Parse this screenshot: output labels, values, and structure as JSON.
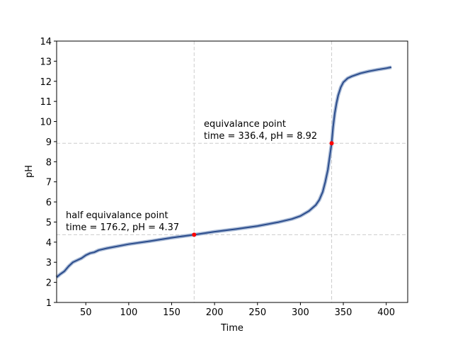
{
  "chart_data": {
    "type": "line",
    "xlabel": "Time",
    "ylabel": "pH",
    "x": [
      16,
      20,
      25,
      30,
      35,
      40,
      45,
      50,
      55,
      60,
      65,
      75,
      100,
      125,
      150,
      176.2,
      200,
      225,
      250,
      275,
      290,
      300,
      310,
      318,
      322,
      326,
      329,
      332,
      334,
      336.4,
      338,
      340,
      342,
      344,
      347,
      350,
      355,
      360,
      370,
      380,
      390,
      400,
      406
    ],
    "series": [
      {
        "color": "#2b4c8c",
        "values": [
          2.25,
          2.4,
          2.55,
          2.8,
          3.0,
          3.1,
          3.2,
          3.35,
          3.45,
          3.5,
          3.6,
          3.7,
          3.9,
          4.05,
          4.22,
          4.37,
          4.52,
          4.65,
          4.8,
          5.0,
          5.15,
          5.3,
          5.55,
          5.85,
          6.1,
          6.5,
          7.0,
          7.6,
          8.2,
          8.92,
          9.7,
          10.4,
          10.9,
          11.3,
          11.7,
          11.95,
          12.15,
          12.25,
          12.4,
          12.5,
          12.58,
          12.65,
          12.7
        ]
      }
    ],
    "points": {
      "color": "#ff0000",
      "x": [
        176.2,
        336.4
      ],
      "y": [
        4.37,
        8.92
      ]
    },
    "annotations": [
      {
        "lines": [
          "half equivalance point",
          "time = 176.2, pH = 4.37"
        ]
      },
      {
        "lines": [
          "equivalance point",
          "time = 336.4, pH = 8.92"
        ]
      }
    ],
    "xlim": [
      16,
      425
    ],
    "ylim": [
      1,
      14
    ],
    "xticks": [
      50,
      100,
      150,
      200,
      250,
      300,
      350,
      400
    ],
    "yticks": [
      1,
      2,
      3,
      4,
      5,
      6,
      7,
      8,
      9,
      10,
      11,
      12,
      13,
      14
    ]
  }
}
